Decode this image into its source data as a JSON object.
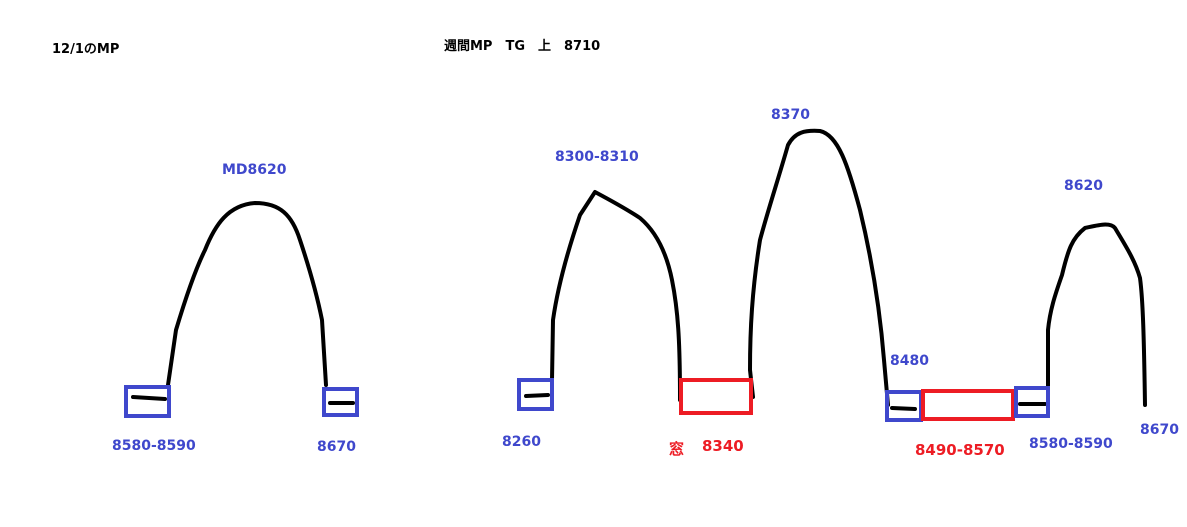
{
  "colors": {
    "curve": "#000000",
    "support": "#3f48cc",
    "window": "#ed1c24"
  },
  "left": {
    "title": "12/1のMP",
    "peak_label": "MD8620",
    "left_label": "8580-8590",
    "right_label": "8670"
  },
  "right": {
    "title": "週間MP　TG　上　8710",
    "labels": {
      "start": "8260",
      "peak1": "8300-8310",
      "window1_prefix": "窓",
      "window1": "8340",
      "peak2": "8370",
      "low2": "8480",
      "window2": "8490-8570",
      "low3": "8580-8590",
      "peak3": "8620",
      "end": "8670"
    }
  }
}
